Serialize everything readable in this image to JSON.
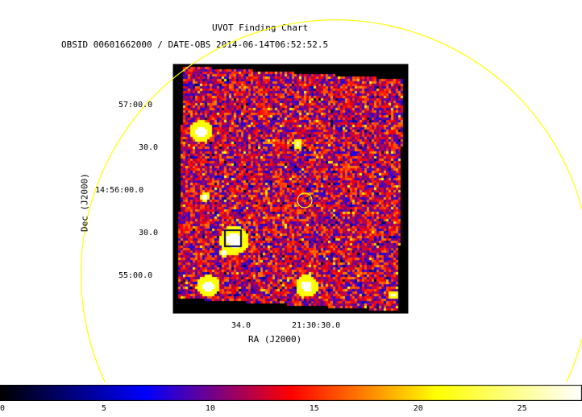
{
  "chart": {
    "title": "UVOT Finding Chart",
    "subtitle": "OBSID 00601662000 / DATE-OBS 2014-06-14T06:52:52.5",
    "xlabel": "RA  (J2000)",
    "ylabel": "Dec  (J2000)",
    "x_ticks": [
      "34.0",
      "21:30:30.0"
    ],
    "y_ticks": [
      "57:00.0",
      "30.0",
      "14:56:00.0",
      "30.0",
      "55:00.0"
    ]
  },
  "colorbar": {
    "ticks": [
      "0",
      "5",
      "10",
      "15",
      "20",
      "25"
    ],
    "range": [
      0,
      28
    ],
    "colormap": [
      "#000000",
      "#0000ff",
      "#ff0000",
      "#ffff00",
      "#ffffff"
    ]
  },
  "colors": {
    "circle": "#ffff00",
    "frame": "#000000"
  }
}
